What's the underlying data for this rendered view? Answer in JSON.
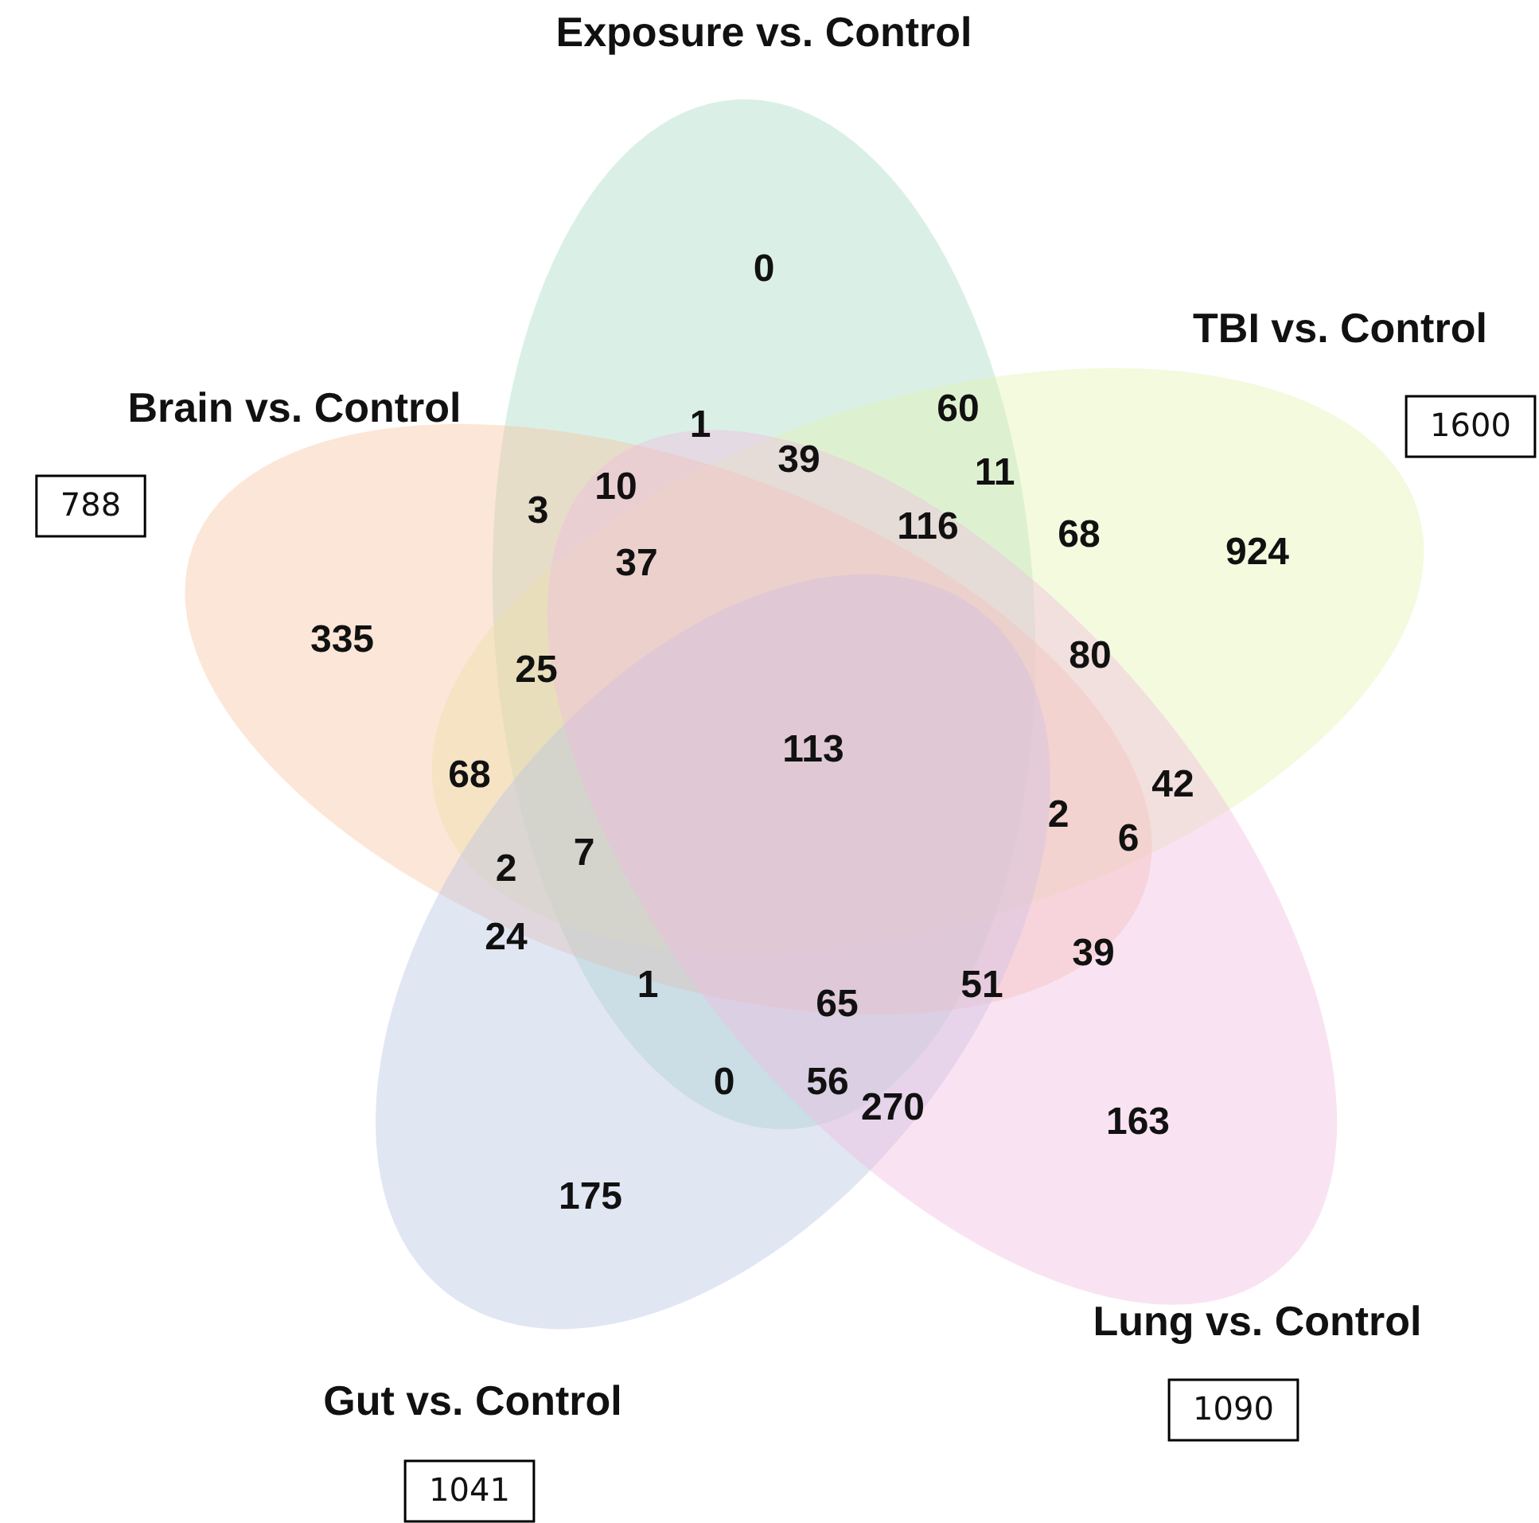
{
  "chart_data": {
    "type": "other",
    "data_labels": true,
    "categories": [
      "Exposure vs. Control",
      "TBI vs. Control",
      "Brain vs. Control",
      "Gut vs. Control",
      "Lung vs. Control"
    ],
    "values": [
      null,
      1600,
      788,
      1041,
      1090
    ],
    "colors": [
      "#a6dcc6",
      "#e3f4b0",
      "#f8c4a0",
      "#b7c3e2",
      "#f0bde0"
    ],
    "annotations": [
      "0",
      "60",
      "924",
      "335",
      "1",
      "39",
      "11",
      "10",
      "3",
      "116",
      "68",
      "37",
      "25",
      "80",
      "113",
      "68",
      "42",
      "2",
      "6",
      "7",
      "2",
      "24",
      "39",
      "1",
      "51",
      "65",
      "0",
      "56",
      "270",
      "163",
      "175"
    ]
  }
}
